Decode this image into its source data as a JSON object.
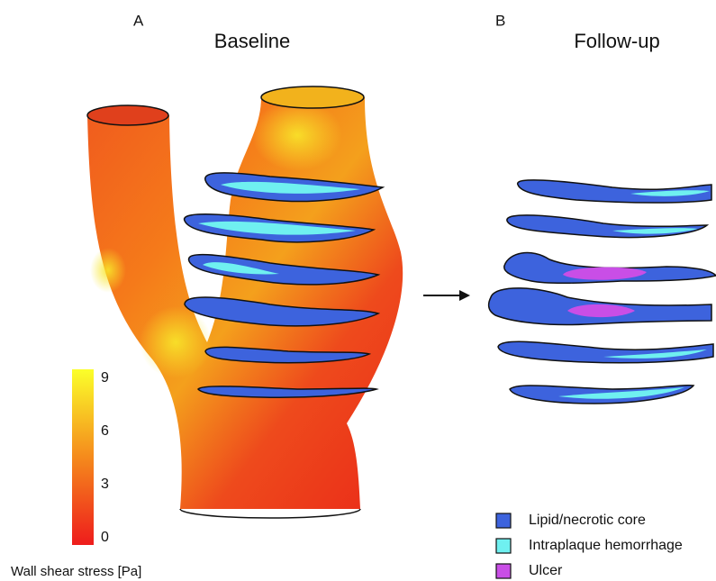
{
  "panels": [
    {
      "letter": "A",
      "title": "Baseline"
    },
    {
      "letter": "B",
      "title": "Follow-up"
    }
  ],
  "colorbar": {
    "label": "Wall shear stress [Pa]",
    "ticks": [
      0,
      3,
      6,
      9
    ]
  },
  "legend": [
    {
      "label": "Lipid/necrotic core",
      "color": "#3d63dd"
    },
    {
      "label": "Intraplaque hemorrhage",
      "color": "#6ff0f0"
    },
    {
      "label": "Ulcer",
      "color": "#c94ee6"
    }
  ]
}
